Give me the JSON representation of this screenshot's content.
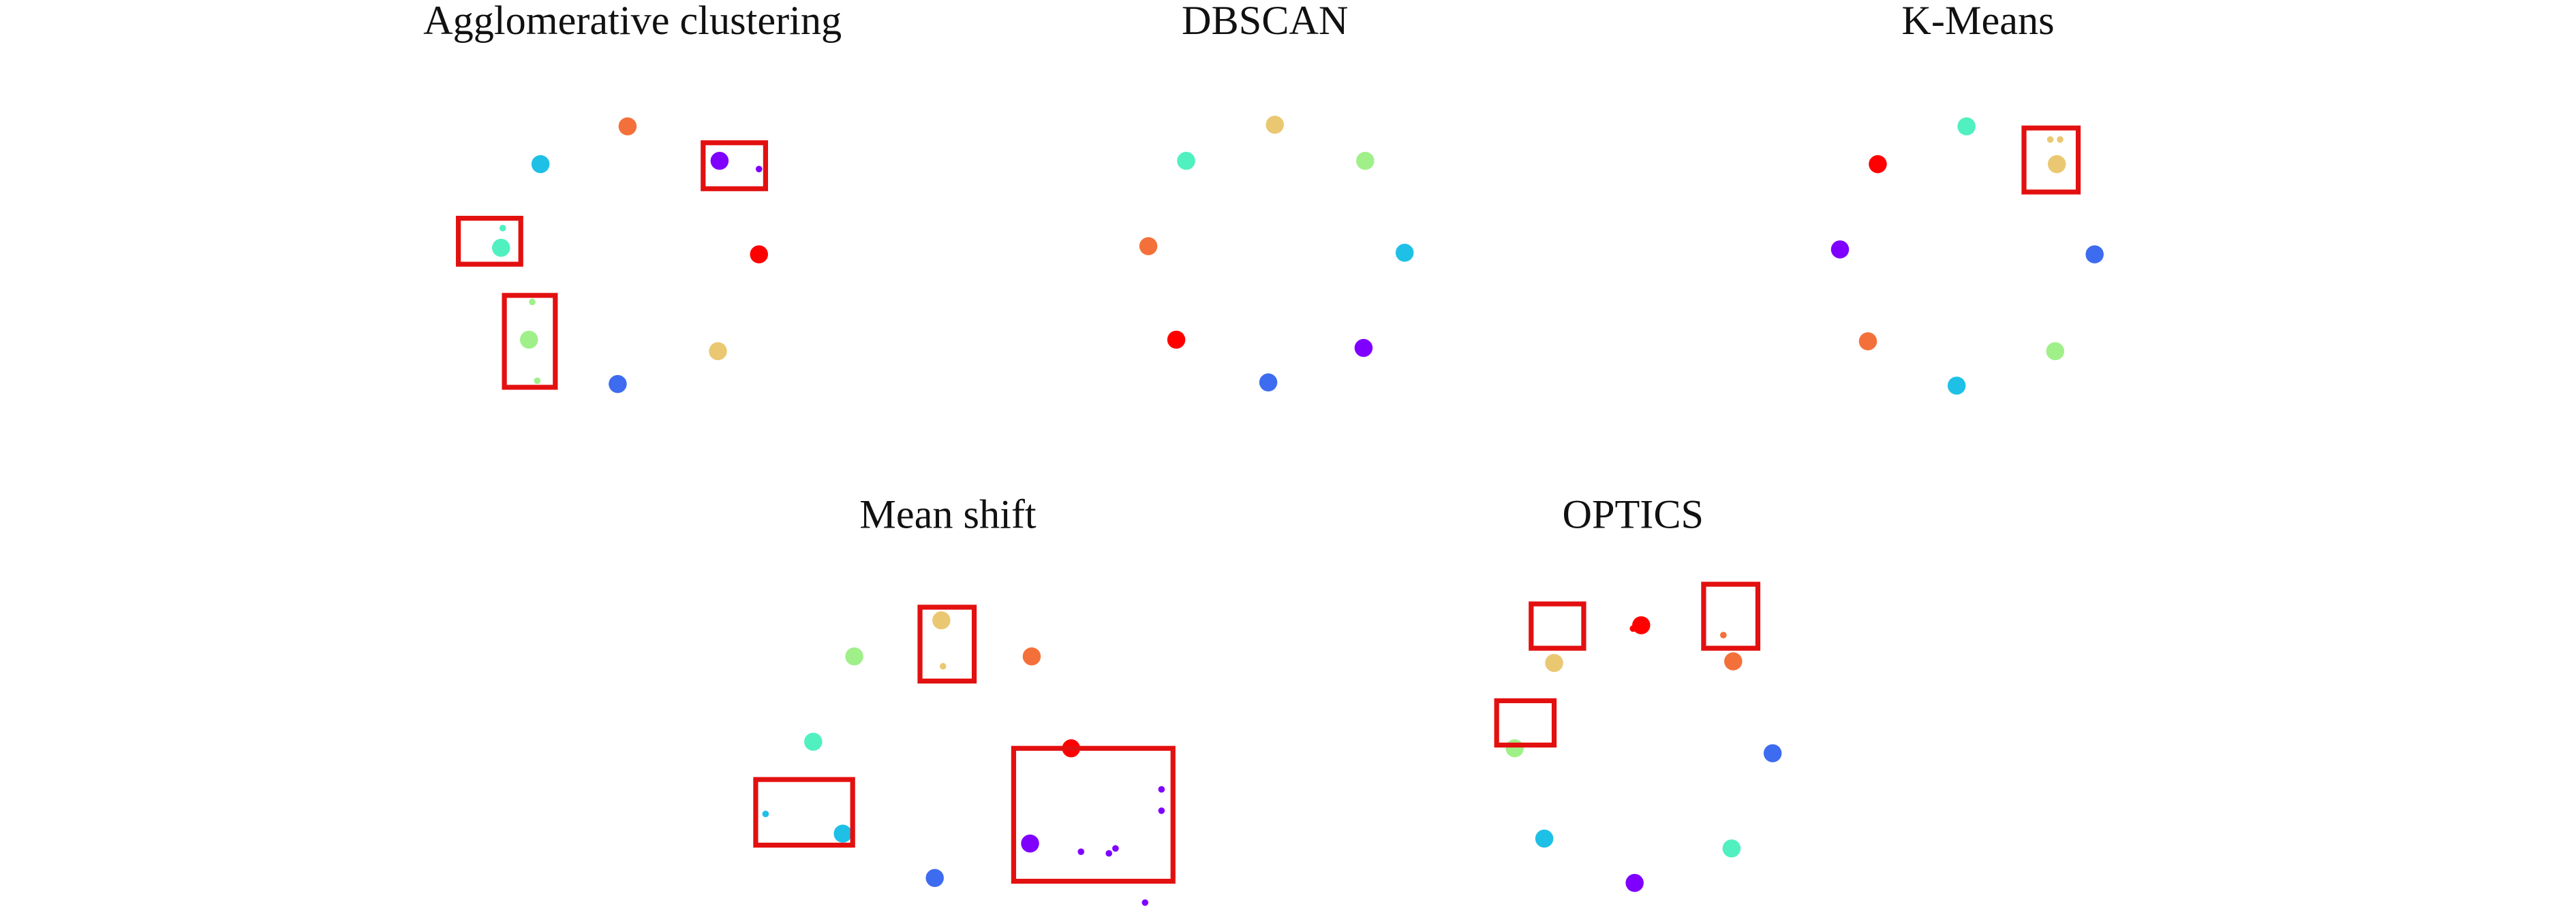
{
  "chart_data": [
    {
      "type": "scatter",
      "title": "Agglomerative clustering",
      "xlim": [
        0,
        280
      ],
      "ylim": [
        210,
        0
      ],
      "series": [
        {
          "color": "#f4703a",
          "x": [
            117
          ],
          "y": [
            27
          ]
        },
        {
          "color": "#1ec0e6",
          "x": [
            64
          ],
          "y": [
            50
          ]
        },
        {
          "color": "#7f00ff",
          "x": [
            173,
            197
          ],
          "y": [
            48,
            53
          ]
        },
        {
          "color": "#ff0000",
          "x": [
            197
          ],
          "y": [
            105
          ]
        },
        {
          "color": "#50f0c0",
          "x": [
            40,
            41
          ],
          "y": [
            101,
            89
          ]
        },
        {
          "color": "#a0f08a",
          "x": [
            57,
            59,
            62
          ],
          "y": [
            157,
            134,
            182
          ]
        },
        {
          "color": "#eac872",
          "x": [
            172
          ],
          "y": [
            164
          ]
        },
        {
          "color": "#3d6cf0",
          "x": [
            111
          ],
          "y": [
            184
          ]
        }
      ]
    },
    {
      "type": "scatter",
      "title": "DBSCAN",
      "xlim": [
        0,
        280
      ],
      "ylim": [
        210,
        0
      ],
      "series": [
        {
          "color": "#eac872",
          "x": [
            126
          ],
          "y": [
            26
          ]
        },
        {
          "color": "#50f0c0",
          "x": [
            72
          ],
          "y": [
            48
          ]
        },
        {
          "color": "#a0f08a",
          "x": [
            181
          ],
          "y": [
            48
          ]
        },
        {
          "color": "#f4703a",
          "x": [
            49
          ],
          "y": [
            100
          ]
        },
        {
          "color": "#1ec0e6",
          "x": [
            205
          ],
          "y": [
            104
          ]
        },
        {
          "color": "#ff0000",
          "x": [
            66
          ],
          "y": [
            157
          ]
        },
        {
          "color": "#7f00ff",
          "x": [
            180
          ],
          "y": [
            162
          ]
        },
        {
          "color": "#3d6cf0",
          "x": [
            122
          ],
          "y": [
            183
          ]
        }
      ]
    },
    {
      "type": "scatter",
      "title": "K-Means",
      "xlim": [
        0,
        280
      ],
      "ylim": [
        210,
        0
      ],
      "series": [
        {
          "color": "#ff0000",
          "x": [
            58
          ],
          "y": [
            50
          ]
        },
        {
          "color": "#50f0c0",
          "x": [
            112
          ],
          "y": [
            27
          ]
        },
        {
          "color": "#eac872",
          "x": [
            167,
            163,
            169
          ],
          "y": [
            50,
            35,
            35
          ]
        },
        {
          "color": "#7f00ff",
          "x": [
            35
          ],
          "y": [
            102
          ]
        },
        {
          "color": "#3d6cf0",
          "x": [
            190
          ],
          "y": [
            105
          ]
        },
        {
          "color": "#f4703a",
          "x": [
            52
          ],
          "y": [
            158
          ]
        },
        {
          "color": "#a0f08a",
          "x": [
            166
          ],
          "y": [
            164
          ]
        },
        {
          "color": "#1ec0e6",
          "x": [
            106
          ],
          "y": [
            185
          ]
        }
      ]
    },
    {
      "type": "scatter",
      "title": "Mean shift",
      "xlim": [
        0,
        280
      ],
      "ylim": [
        210,
        0
      ],
      "series": [
        {
          "color": "#a0f08a",
          "x": [
            80
          ],
          "y": [
            50
          ]
        },
        {
          "color": "#eac872",
          "x": [
            133,
            134
          ],
          "y": [
            28,
            56
          ]
        },
        {
          "color": "#f4703a",
          "x": [
            188
          ],
          "y": [
            50
          ]
        },
        {
          "color": "#50f0c0",
          "x": [
            55
          ],
          "y": [
            102
          ]
        },
        {
          "color": "#1ec0e6",
          "x": [
            73,
            26
          ],
          "y": [
            158,
            146
          ]
        },
        {
          "color": "#ff0000",
          "x": [
            212
          ],
          "y": [
            106
          ]
        },
        {
          "color": "#7f00ff",
          "x": [
            187,
            218,
            235,
            239,
            267,
            267,
            257
          ],
          "y": [
            164,
            169,
            170,
            167,
            131,
            144,
            200
          ]
        },
        {
          "color": "#3d6cf0",
          "x": [
            129
          ],
          "y": [
            185
          ]
        }
      ]
    },
    {
      "type": "scatter",
      "title": "OPTICS",
      "xlim": [
        0,
        280
      ],
      "ylim": [
        210,
        0
      ],
      "series": [
        {
          "color": "#ff0000",
          "x": [
            119,
            114
          ],
          "y": [
            31,
            33
          ]
        },
        {
          "color": "#f4703a",
          "x": [
            175,
            169
          ],
          "y": [
            53,
            37
          ]
        },
        {
          "color": "#eac872",
          "x": [
            66
          ],
          "y": [
            54
          ]
        },
        {
          "color": "#a0f08a",
          "x": [
            42
          ],
          "y": [
            106
          ]
        },
        {
          "color": "#3d6cf0",
          "x": [
            199
          ],
          "y": [
            109
          ]
        },
        {
          "color": "#1ec0e6",
          "x": [
            60
          ],
          "y": [
            161
          ]
        },
        {
          "color": "#50f0c0",
          "x": [
            174
          ],
          "y": [
            167
          ]
        },
        {
          "color": "#7f00ff",
          "x": [
            115
          ],
          "y": [
            188
          ]
        }
      ]
    }
  ]
}
